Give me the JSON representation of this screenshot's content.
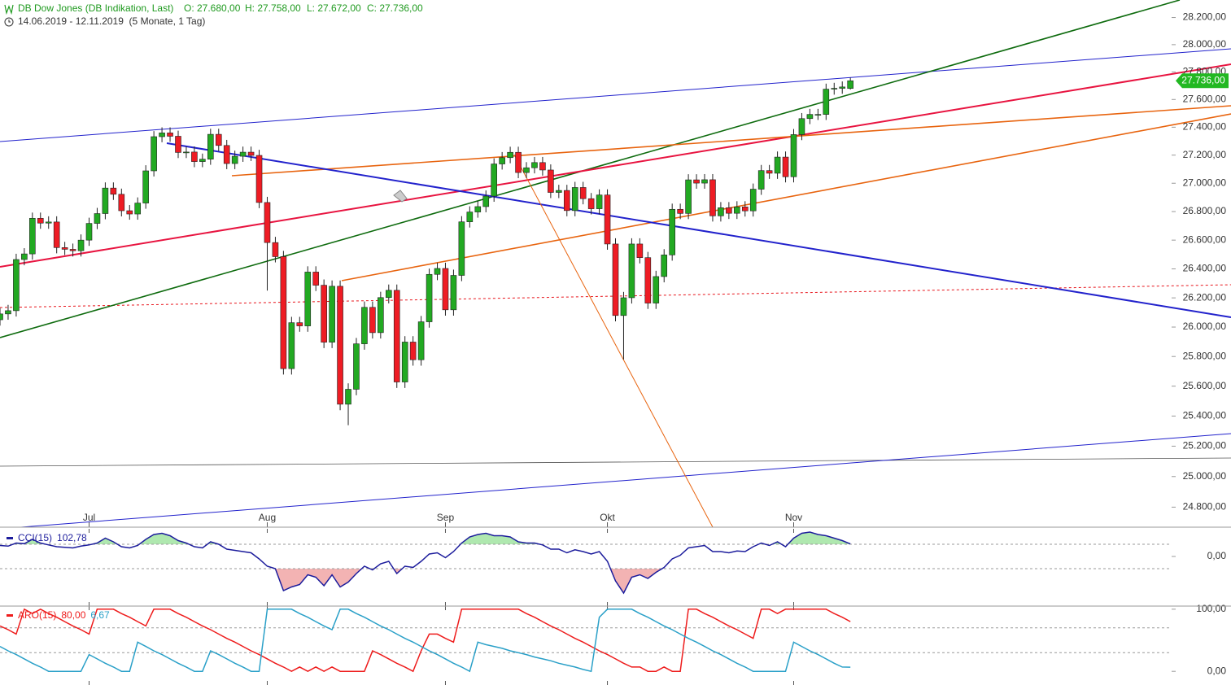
{
  "chart_data": [
    {
      "type": "candlestick",
      "title": "DB Dow Jones (DB Indikation, Last)",
      "ohlc_labels": [
        "O: 27.680,00",
        "H: 27.758,00",
        "L: 27.672,00",
        "C: 27.736,00"
      ],
      "subtitle": "14.06.2019 - 12.11.2019  (5 Monate, 1 Tag)",
      "categories": [
        null,
        null,
        null,
        null,
        null,
        null,
        null,
        null,
        null,
        null,
        null,
        "Jul",
        null,
        null,
        null,
        null,
        null,
        null,
        null,
        null,
        null,
        null,
        null,
        null,
        null,
        null,
        null,
        null,
        null,
        null,
        null,
        null,
        null,
        "Aug",
        null,
        null,
        null,
        null,
        null,
        null,
        null,
        null,
        null,
        null,
        null,
        null,
        null,
        null,
        null,
        null,
        null,
        null,
        null,
        null,
        null,
        "Sep",
        null,
        null,
        null,
        null,
        null,
        null,
        null,
        null,
        null,
        null,
        null,
        null,
        null,
        null,
        null,
        null,
        null,
        null,
        null,
        "Okt",
        null,
        null,
        null,
        null,
        null,
        null,
        null,
        null,
        null,
        null,
        null,
        null,
        null,
        null,
        null,
        null,
        null,
        null,
        null,
        null,
        null,
        null,
        "Nov",
        null,
        null,
        null,
        null,
        null,
        null,
        null
      ],
      "open": [
        26050,
        26090,
        26112,
        26465,
        26504,
        26753,
        26719,
        26727,
        26548,
        26536,
        26526,
        26600,
        26717,
        26786,
        26966,
        26922,
        26806,
        26783,
        26860,
        27088,
        27332,
        27359,
        27335,
        27219,
        27222,
        27154,
        27171,
        27349,
        27269,
        27140,
        27192,
        27221,
        27198,
        26864,
        26583,
        26485,
        25718,
        26030,
        26008,
        26378,
        26287,
        25897,
        26280,
        25479,
        25579,
        25886,
        26135,
        25962,
        26202,
        26252,
        25628,
        25898,
        25778,
        26036,
        26362,
        26403,
        26118,
        26355,
        26728,
        26797,
        26835,
        26909,
        27137,
        27182,
        27220,
        27076,
        27110,
        27147,
        27094,
        26935,
        26949,
        26807,
        26970,
        26891,
        26820,
        26917,
        26573,
        26079,
        26201,
        26573,
        26478,
        26164,
        26347,
        26497,
        26816,
        26787,
        27024,
        27001,
        27025,
        26770,
        26827,
        26788,
        26833,
        26805,
        26958,
        27090,
        27071,
        27186,
        27046,
        27347,
        27462,
        27492,
        27492,
        27675,
        27681,
        27680
      ],
      "high": [
        26130,
        26152,
        26505,
        26544,
        26793,
        26793,
        26767,
        26767,
        26588,
        26576,
        26640,
        26757,
        26826,
        27006,
        27006,
        26962,
        26846,
        26900,
        27128,
        27372,
        27399,
        27399,
        27375,
        27262,
        27262,
        27211,
        27389,
        27389,
        27309,
        27232,
        27261,
        27261,
        27238,
        26904,
        26623,
        26525,
        26070,
        26070,
        26418,
        26418,
        26327,
        26320,
        26320,
        25619,
        25926,
        26175,
        26175,
        26242,
        26292,
        26292,
        25938,
        25938,
        26076,
        26402,
        26443,
        26443,
        26395,
        26768,
        26837,
        26875,
        26949,
        27177,
        27222,
        27260,
        27260,
        27150,
        27187,
        27187,
        27134,
        26989,
        26989,
        27010,
        27010,
        26931,
        26957,
        26957,
        26613,
        26241,
        26613,
        26613,
        26518,
        26387,
        26537,
        26856,
        26856,
        27064,
        27064,
        27065,
        27065,
        26867,
        26867,
        26873,
        26873,
        26998,
        27130,
        27130,
        27226,
        27226,
        27387,
        27502,
        27532,
        27532,
        27715,
        27721,
        27731,
        27758
      ],
      "low": [
        26010,
        26050,
        26072,
        26425,
        26464,
        26679,
        26679,
        26508,
        26496,
        26486,
        26486,
        26560,
        26677,
        26746,
        26882,
        26766,
        26743,
        26743,
        26820,
        27048,
        27292,
        27295,
        27179,
        27179,
        27114,
        27114,
        27131,
        27229,
        27100,
        27100,
        27152,
        27158,
        26824,
        26250,
        26445,
        25678,
        25678,
        25968,
        25968,
        26247,
        25857,
        25857,
        25439,
        25339,
        25539,
        25846,
        25922,
        25922,
        26162,
        25588,
        25588,
        25738,
        25738,
        25996,
        26322,
        26078,
        26078,
        26315,
        26688,
        26757,
        26795,
        26869,
        27097,
        27142,
        27036,
        27036,
        27070,
        27054,
        26895,
        26895,
        26767,
        26767,
        26851,
        26780,
        26780,
        26533,
        26039,
        25780,
        26161,
        26438,
        26124,
        26124,
        26307,
        26457,
        26747,
        26747,
        26961,
        26961,
        26730,
        26730,
        26748,
        26748,
        26765,
        26765,
        26918,
        27031,
        27031,
        27006,
        27006,
        27307,
        27422,
        27452,
        27452,
        27635,
        27641,
        27672
      ],
      "close": [
        26090,
        26112,
        26465,
        26504,
        26753,
        26719,
        26727,
        26548,
        26536,
        26526,
        26600,
        26717,
        26786,
        26966,
        26922,
        26806,
        26783,
        26860,
        27088,
        27332,
        27359,
        27335,
        27219,
        27222,
        27154,
        27171,
        27349,
        27269,
        27140,
        27192,
        27221,
        27198,
        26864,
        26583,
        26485,
        25718,
        26030,
        26008,
        26378,
        26287,
        25897,
        26280,
        25479,
        25579,
        25886,
        26135,
        25962,
        26202,
        26252,
        25628,
        25898,
        25778,
        26036,
        26362,
        26403,
        26118,
        26355,
        26728,
        26797,
        26835,
        26909,
        27137,
        27182,
        27220,
        27076,
        27110,
        27147,
        27094,
        26935,
        26949,
        26807,
        26970,
        26891,
        26820,
        26917,
        26573,
        26079,
        26201,
        26573,
        26478,
        26164,
        26347,
        26497,
        26816,
        26787,
        27024,
        27001,
        27025,
        26770,
        26827,
        26788,
        26833,
        26805,
        26958,
        27090,
        27071,
        27186,
        27046,
        27347,
        27462,
        27492,
        27492,
        27675,
        27681,
        27691,
        27736
      ],
      "last_label": "27.736,00",
      "up_color": "#22a922",
      "down_color": "#ee1c24",
      "tag_color": "#22b822",
      "log": true,
      "ylim": [
        24670,
        28330
      ],
      "yticks": [
        {
          "value": 24800,
          "label": "24.800,00"
        },
        {
          "value": 25000,
          "label": "25.000,00"
        },
        {
          "value": 25200,
          "label": "25.200,00"
        },
        {
          "value": 25400,
          "label": "25.400,00"
        },
        {
          "value": 25600,
          "label": "25.600,00"
        },
        {
          "value": 25800,
          "label": "25.800,00"
        },
        {
          "value": 26000,
          "label": "26.000,00"
        },
        {
          "value": 26200,
          "label": "26.200,00"
        },
        {
          "value": 26400,
          "label": "26.400,00"
        },
        {
          "value": 26600,
          "label": "26.600,00"
        },
        {
          "value": 26800,
          "label": "26.800,00"
        },
        {
          "value": 27000,
          "label": "27.000,00"
        },
        {
          "value": 27200,
          "label": "27.200,00"
        },
        {
          "value": 27400,
          "label": "27.400,00"
        },
        {
          "value": 27600,
          "label": "27.600,00"
        },
        {
          "value": 27800,
          "label": "27.800,00"
        },
        {
          "value": 28000,
          "label": "28.000,00"
        },
        {
          "value": 28200,
          "label": "28.200,00"
        }
      ]
    },
    {
      "type": "line",
      "series": [
        {
          "name": "CCI(15)",
          "color": "#1c1c9c",
          "last_label": "102,78",
          "values": [
            90,
            85,
            110,
            105,
            140,
            110,
            95,
            80,
            75,
            70,
            85,
            95,
            110,
            150,
            120,
            80,
            70,
            90,
            140,
            180,
            190,
            170,
            130,
            110,
            80,
            70,
            120,
            100,
            60,
            50,
            40,
            30,
            -20,
            -80,
            -100,
            -280,
            -250,
            -230,
            -150,
            -170,
            -240,
            -150,
            -250,
            -210,
            -140,
            -80,
            -110,
            -60,
            -40,
            -140,
            -80,
            -90,
            -40,
            20,
            30,
            -10,
            40,
            110,
            160,
            180,
            190,
            170,
            170,
            160,
            120,
            110,
            110,
            95,
            60,
            60,
            30,
            55,
            40,
            20,
            40,
            -40,
            -200,
            -300,
            -170,
            -150,
            -180,
            -130,
            -90,
            -20,
            10,
            70,
            80,
            90,
            40,
            40,
            30,
            45,
            40,
            80,
            110,
            90,
            120,
            80,
            150,
            190,
            200,
            180,
            170,
            150,
            130,
            102.78
          ]
        }
      ],
      "levels": [
        100,
        -100
      ],
      "level_colors": [
        "#9be29b",
        "#f0a0a0"
      ],
      "ylim": [
        -407,
        227
      ],
      "yticks": [
        {
          "value": 0,
          "label": "0,00"
        }
      ]
    },
    {
      "type": "line",
      "series": [
        {
          "name": "ARO(15)",
          "color": "#ee1c1c",
          "last_label": "80,00",
          "values": [
            73,
            67,
            60,
            100,
            93,
            100,
            93,
            87,
            80,
            73,
            67,
            60,
            100,
            100,
            100,
            93,
            87,
            80,
            73,
            100,
            100,
            100,
            93,
            87,
            80,
            73,
            67,
            60,
            53,
            47,
            40,
            33,
            27,
            20,
            13,
            7,
            0,
            7,
            0,
            7,
            0,
            7,
            0,
            0,
            0,
            0,
            33,
            27,
            20,
            13,
            7,
            0,
            33,
            60,
            60,
            53,
            47,
            100,
            100,
            100,
            100,
            100,
            100,
            100,
            100,
            93,
            87,
            80,
            73,
            67,
            60,
            53,
            47,
            40,
            33,
            27,
            20,
            13,
            7,
            7,
            0,
            0,
            7,
            0,
            0,
            100,
            100,
            93,
            87,
            80,
            73,
            67,
            60,
            53,
            100,
            100,
            93,
            100,
            100,
            100,
            100,
            100,
            100,
            93,
            87,
            80
          ]
        },
        {
          "color": "#2aa0c8",
          "last_label": "6,67",
          "values": [
            40,
            33,
            27,
            20,
            13,
            7,
            0,
            0,
            0,
            0,
            0,
            27,
            20,
            13,
            7,
            0,
            0,
            47,
            40,
            33,
            27,
            20,
            13,
            7,
            0,
            0,
            33,
            27,
            20,
            13,
            7,
            0,
            0,
            100,
            100,
            100,
            100,
            93,
            87,
            80,
            73,
            67,
            100,
            100,
            93,
            87,
            80,
            73,
            67,
            60,
            53,
            47,
            40,
            33,
            27,
            20,
            13,
            7,
            0,
            47,
            43,
            40,
            37,
            33,
            30,
            27,
            23,
            20,
            17,
            13,
            10,
            7,
            3,
            0,
            87,
            100,
            100,
            100,
            100,
            93,
            87,
            80,
            73,
            67,
            60,
            53,
            47,
            40,
            33,
            27,
            20,
            13,
            7,
            0,
            0,
            0,
            0,
            0,
            47,
            40,
            33,
            27,
            20,
            13,
            7,
            6.67
          ]
        }
      ],
      "levels": [
        70,
        30
      ],
      "ylim": [
        -22,
        105
      ],
      "yticks": [
        {
          "value": 0,
          "label": "0,00"
        },
        {
          "value": 100,
          "label": "100,00"
        }
      ]
    }
  ]
}
